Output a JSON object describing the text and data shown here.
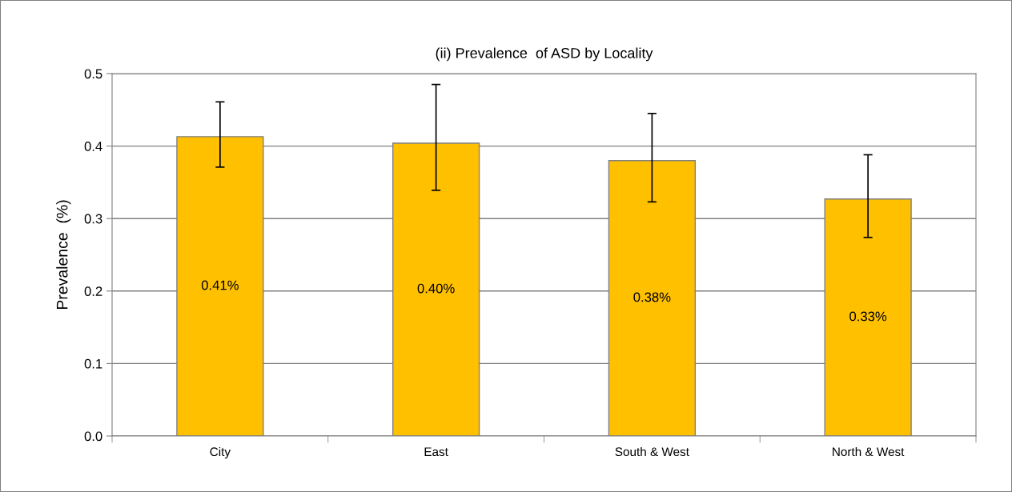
{
  "chart_data": {
    "type": "bar",
    "title": "(ii) Prevalence  of ASD by Locality",
    "ylabel": "Prevalence  (%)",
    "categories": [
      "City",
      "East",
      "South & West",
      "North & West"
    ],
    "values": [
      0.413,
      0.404,
      0.38,
      0.327
    ],
    "errors": [
      [
        0.371,
        0.461
      ],
      [
        0.339,
        0.485
      ],
      [
        0.323,
        0.445
      ],
      [
        0.274,
        0.388
      ]
    ],
    "value_labels": [
      "0.41%",
      "0.40%",
      "0.38%",
      "0.33%"
    ],
    "color": "#ffc000",
    "ylim": [
      0,
      0.5
    ],
    "yticks": [
      {
        "value": 0,
        "label": "0.0"
      },
      {
        "value": 0.1,
        "label": "0.1"
      },
      {
        "value": 0.2,
        "label": "0.2"
      },
      {
        "value": 0.3,
        "label": "0.3"
      },
      {
        "value": 0.4,
        "label": "0.4"
      },
      {
        "value": 0.5,
        "label": "0.5"
      }
    ],
    "grid": "y",
    "legend": false
  }
}
